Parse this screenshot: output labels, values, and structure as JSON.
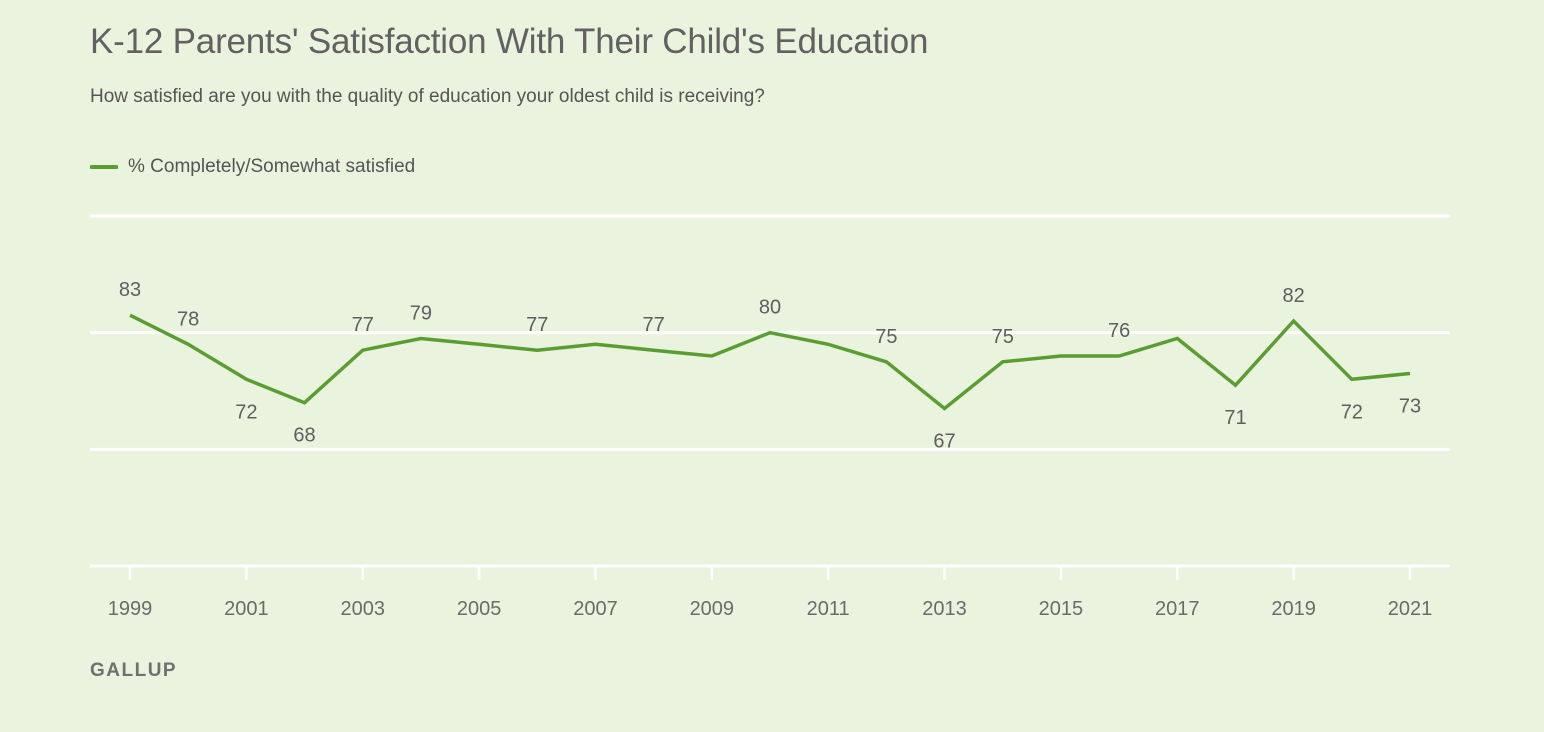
{
  "header": {
    "title": "K-12 Parents' Satisfaction With Their Child's Education",
    "subtitle": "How satisfied are you with the quality of education your oldest child is receiving?"
  },
  "legend": {
    "label": "% Completely/Somewhat satisfied"
  },
  "source": "GALLUP",
  "chart_data": {
    "type": "line",
    "title": "K-12 Parents' Satisfaction With Their Child's Education",
    "subtitle": "How satisfied are you with the quality of education your oldest child is receiving?",
    "xlabel": "",
    "ylabel": "",
    "ylim": [
      40,
      100
    ],
    "xlim": [
      1999,
      2021
    ],
    "x_ticks": [
      1999,
      2001,
      2003,
      2005,
      2007,
      2009,
      2011,
      2013,
      2015,
      2017,
      2019,
      2021
    ],
    "grid": true,
    "legend_position": "top-left",
    "series": [
      {
        "name": "% Completely/Somewhat satisfied",
        "color": "#5a9e32",
        "points": [
          {
            "x": 1999,
            "y": 83,
            "label": "83",
            "label_pos": "above"
          },
          {
            "x": 2000,
            "y": 78,
            "label": "78",
            "label_pos": "above"
          },
          {
            "x": 2001,
            "y": 72,
            "label": "72",
            "label_pos": "below"
          },
          {
            "x": 2002,
            "y": 68,
            "label": "68",
            "label_pos": "below"
          },
          {
            "x": 2003,
            "y": 77,
            "label": "77",
            "label_pos": "above"
          },
          {
            "x": 2004,
            "y": 79,
            "label": "79",
            "label_pos": "above"
          },
          {
            "x": 2005,
            "y": 78,
            "label": null
          },
          {
            "x": 2006,
            "y": 77,
            "label": "77",
            "label_pos": "above"
          },
          {
            "x": 2007,
            "y": 78,
            "label": null
          },
          {
            "x": 2008,
            "y": 77,
            "label": "77",
            "label_pos": "above"
          },
          {
            "x": 2009,
            "y": 76,
            "label": null
          },
          {
            "x": 2010,
            "y": 80,
            "label": "80",
            "label_pos": "above"
          },
          {
            "x": 2011,
            "y": 78,
            "label": null
          },
          {
            "x": 2012,
            "y": 75,
            "label": "75",
            "label_pos": "above"
          },
          {
            "x": 2013,
            "y": 67,
            "label": "67",
            "label_pos": "below"
          },
          {
            "x": 2014,
            "y": 75,
            "label": "75",
            "label_pos": "above"
          },
          {
            "x": 2015,
            "y": 76,
            "label": null
          },
          {
            "x": 2016,
            "y": 76,
            "label": "76",
            "label_pos": "above"
          },
          {
            "x": 2017,
            "y": 79,
            "label": null
          },
          {
            "x": 2018,
            "y": 71,
            "label": "71",
            "label_pos": "below"
          },
          {
            "x": 2019,
            "y": 82,
            "label": "82",
            "label_pos": "above"
          },
          {
            "x": 2020,
            "y": 72,
            "label": "72",
            "label_pos": "below"
          },
          {
            "x": 2021,
            "y": 73,
            "label": "73",
            "label_pos": "below"
          }
        ]
      }
    ]
  }
}
